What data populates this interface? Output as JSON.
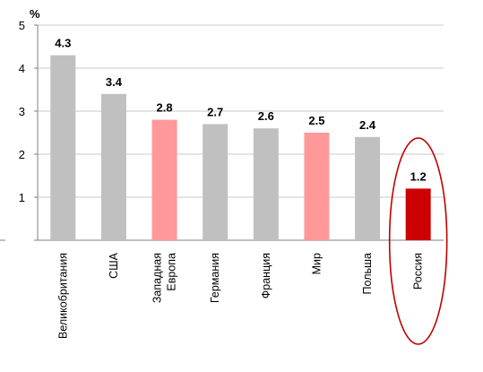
{
  "chart_data": {
    "type": "bar",
    "title": "",
    "xlabel": "",
    "ylabel": "%",
    "ylim": [
      0,
      5
    ],
    "yticks": [
      1,
      2,
      3,
      4,
      5
    ],
    "grid": true,
    "categories": [
      [
        "Великобритания"
      ],
      [
        "США"
      ],
      [
        "Западная",
        "Европа"
      ],
      [
        "Германия"
      ],
      [
        "Франция"
      ],
      [
        "Мир"
      ],
      [
        "Польша"
      ],
      [
        "Россия"
      ]
    ],
    "values": [
      4.3,
      3.4,
      2.8,
      2.7,
      2.6,
      2.5,
      2.4,
      1.2
    ],
    "value_labels": [
      "4.3",
      "3.4",
      "2.8",
      "2.7",
      "2.6",
      "2.5",
      "2.4",
      "1.2"
    ],
    "bar_colors": [
      "#c0c0c0",
      "#c0c0c0",
      "#ff9999",
      "#c0c0c0",
      "#c0c0c0",
      "#ff9999",
      "#c0c0c0",
      "#cc0000"
    ],
    "highlighted_category": "Россия",
    "highlight_color": "#c00000",
    "grid_color": "#c8c8c8",
    "axis_color": "#808080"
  }
}
